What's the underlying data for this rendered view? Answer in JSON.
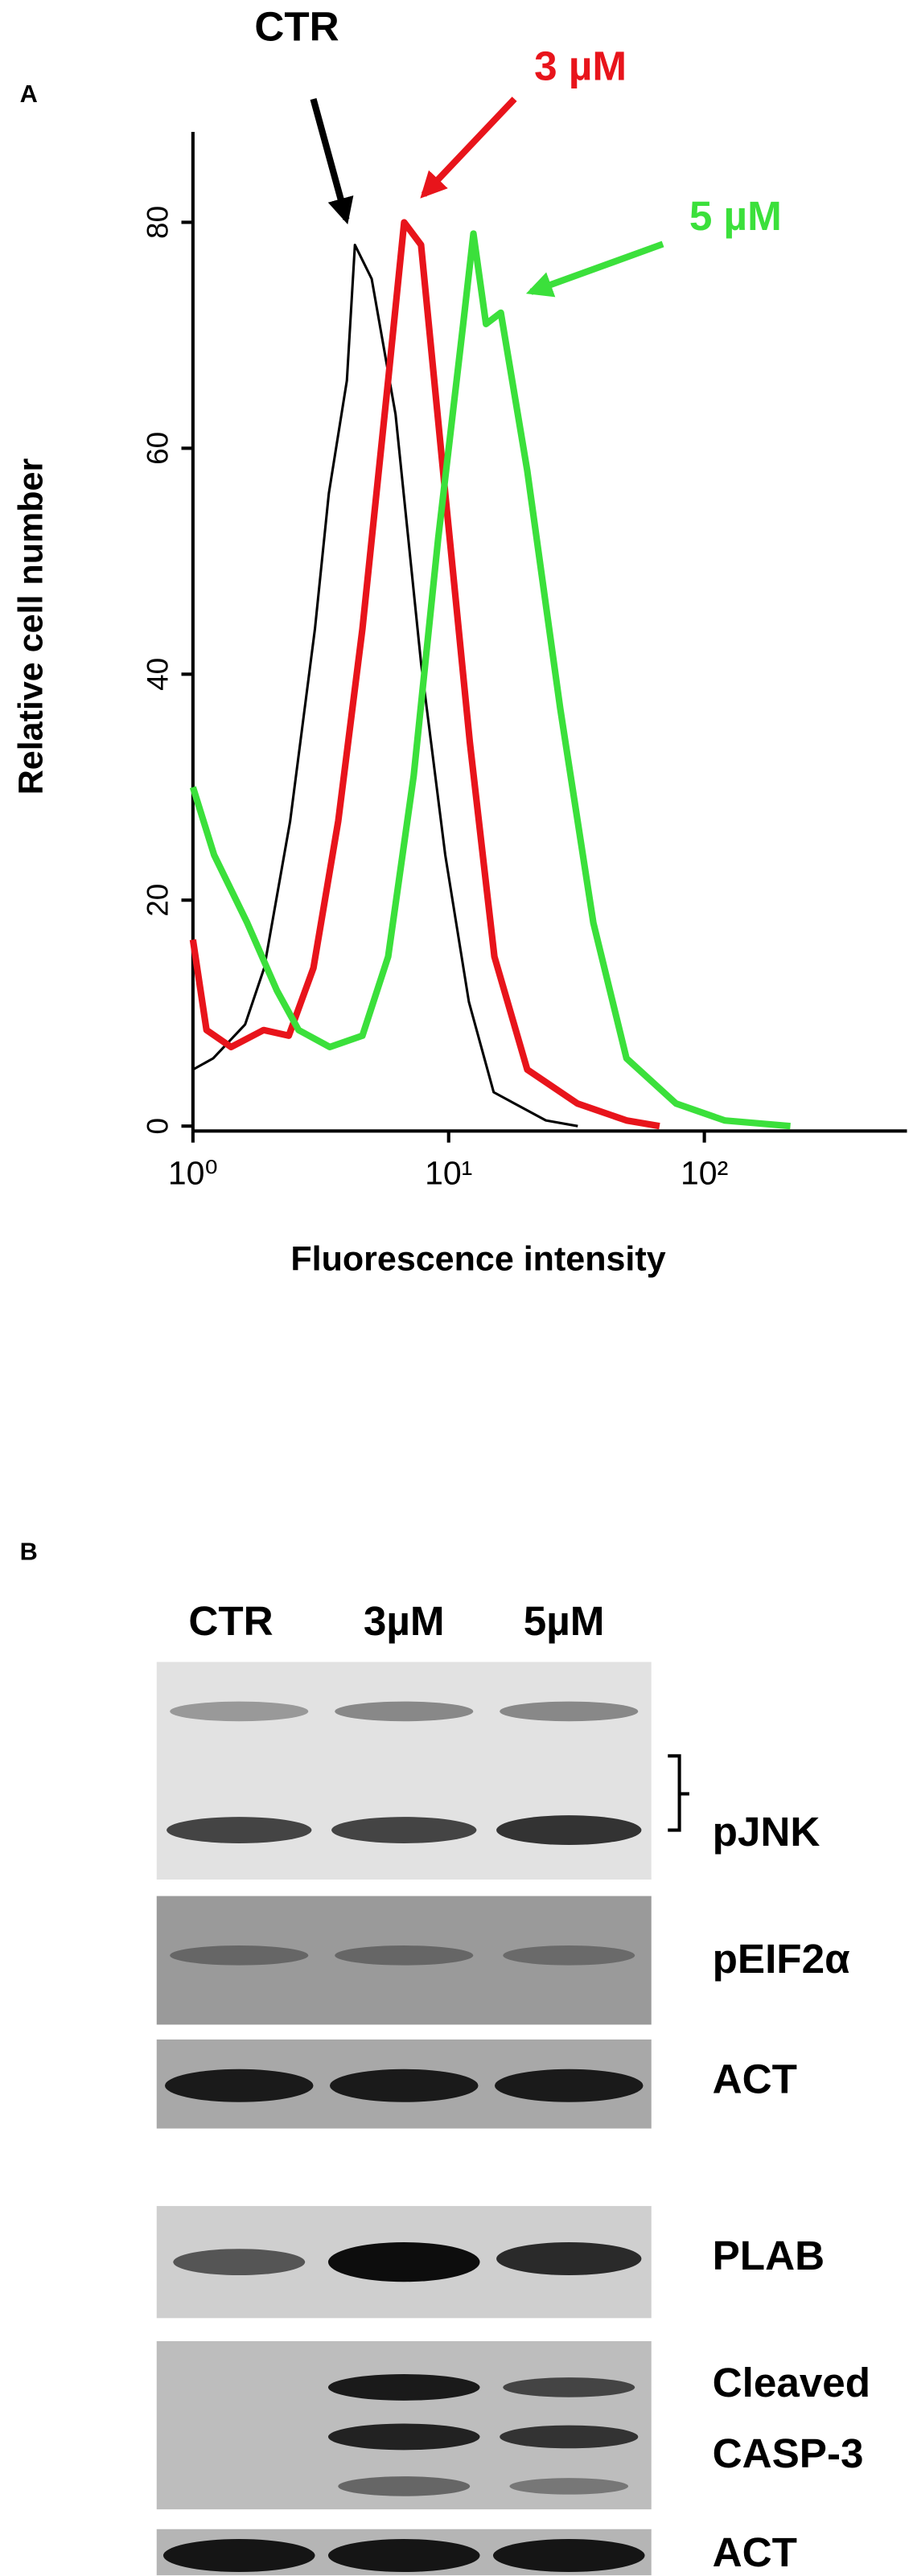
{
  "chart_data": {
    "type": "line",
    "panel": "A",
    "xlabel": "Fluorescence intensity",
    "ylabel": "Relative cell number",
    "xscale": "log",
    "xlim": [
      1,
      620
    ],
    "ylim": [
      0,
      88
    ],
    "xticks": [
      {
        "value": 1,
        "label": "10⁰"
      },
      {
        "value": 10,
        "label": "10¹"
      },
      {
        "value": 100,
        "label": "10²"
      }
    ],
    "yticks": [
      0,
      20,
      40,
      60,
      80
    ],
    "series": [
      {
        "name": "CTR",
        "color": "#000000",
        "width": 1.5,
        "x": [
          1,
          1.2,
          1.6,
          1.9,
          2.4,
          3,
          3.4,
          4,
          4.3,
          5,
          6.2,
          7.8,
          9.7,
          12,
          15,
          24,
          32
        ],
        "values": [
          5,
          6,
          9,
          14,
          27,
          44,
          56,
          66,
          78,
          75,
          63,
          41,
          24,
          11,
          3,
          0.5,
          0
        ]
      },
      {
        "name": "3 µM",
        "color": "#e8141b",
        "width": 4,
        "x": [
          1,
          1.13,
          1.41,
          1.89,
          2.37,
          2.96,
          3.7,
          4.6,
          5.8,
          6.7,
          7.8,
          9.7,
          12.1,
          15.1,
          20.3,
          31.9,
          49.6,
          66.8
        ],
        "values": [
          16.5,
          8.5,
          7,
          8.5,
          8,
          14,
          27,
          44,
          66,
          80,
          78,
          56,
          34,
          15,
          5,
          2,
          0.5,
          0
        ]
      },
      {
        "name": "5 µM",
        "color": "#3be03b",
        "width": 4,
        "x": [
          1,
          1.21,
          1.63,
          2.13,
          2.59,
          3.43,
          4.6,
          5.8,
          7.3,
          9.1,
          11.4,
          12.5,
          14,
          16,
          20.3,
          27.3,
          36.8,
          49.6,
          77.5,
          120,
          217
        ],
        "values": [
          30,
          24,
          18,
          12,
          8.5,
          7,
          8,
          15,
          31,
          52,
          71,
          79,
          71,
          72,
          58,
          37,
          18,
          6,
          2,
          0.5,
          0
        ]
      }
    ]
  },
  "blot": {
    "panel": "B",
    "lanes": [
      "CTR",
      "3µM",
      "5µM"
    ],
    "labels": [
      "pJNK",
      "pEIF2α",
      "ACT",
      "PLAB",
      "Cleaved",
      "CASP-3",
      "ACT"
    ]
  }
}
